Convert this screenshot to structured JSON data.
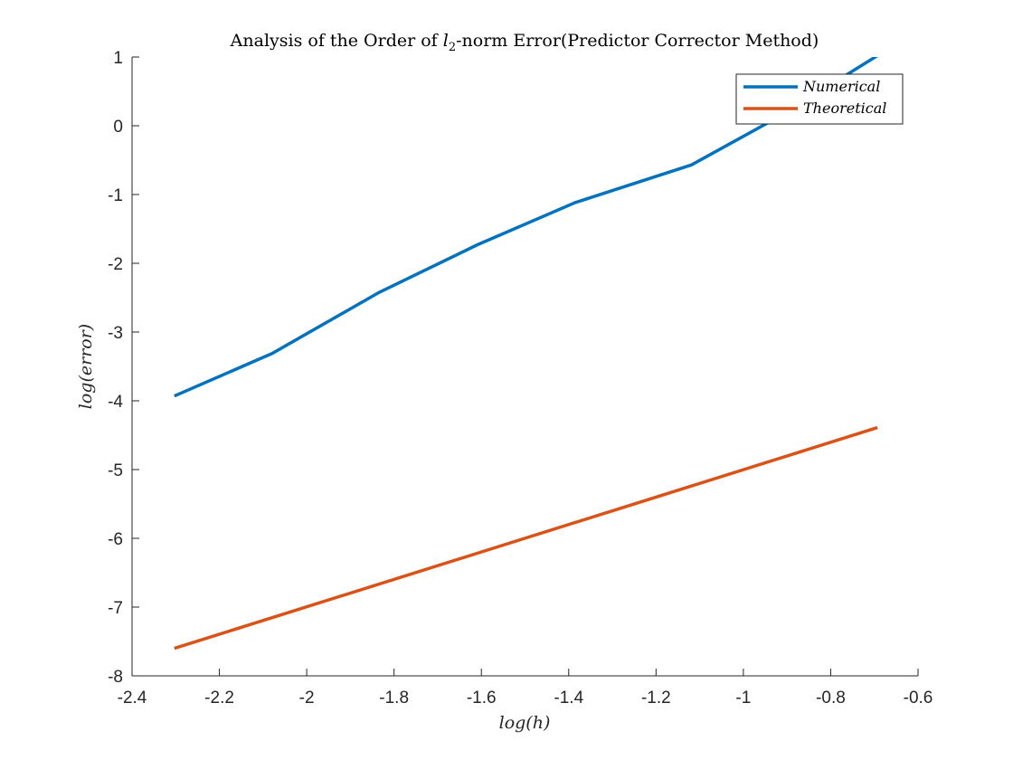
{
  "chart_data": {
    "type": "line",
    "title": {
      "before": "Analysis of the Order of ",
      "l": "l",
      "sub": "2",
      "after": "-norm Error(Predictor Corrector Method)"
    },
    "xlabel": "log(h)",
    "ylabel": "log(error)",
    "xlim": [
      -2.4,
      -0.6
    ],
    "ylim": [
      -8,
      1
    ],
    "xticks": [
      -2.4,
      -2.2,
      -2,
      -1.8,
      -1.6,
      -1.4,
      -1.2,
      -1,
      -0.8,
      -0.6
    ],
    "yticks": [
      -8,
      -7,
      -6,
      -5,
      -4,
      -3,
      -2,
      -1,
      0,
      1
    ],
    "xtick_labels": [
      "-2.4",
      "-2.2",
      "-2",
      "-1.8",
      "-1.6",
      "-1.4",
      "-1.2",
      "-1",
      "-0.8",
      "-0.6"
    ],
    "ytick_labels": [
      "-8",
      "-7",
      "-6",
      "-5",
      "-4",
      "-3",
      "-2",
      "-1",
      "0",
      "1"
    ],
    "grid": false,
    "legend_position": "top-right",
    "series": [
      {
        "name": "Numerical",
        "color": "#0072BD",
        "x": [
          -2.303,
          -2.079,
          -1.833,
          -1.609,
          -1.386,
          -1.119,
          -0.916,
          -0.693
        ],
        "y": [
          -3.93,
          -3.31,
          -2.42,
          -1.73,
          -1.12,
          -0.57,
          0.14,
          1.02
        ]
      },
      {
        "name": "Theoretical",
        "color": "#D95319",
        "x": [
          -2.303,
          -0.693
        ],
        "y": [
          -7.6,
          -4.39
        ]
      }
    ]
  }
}
